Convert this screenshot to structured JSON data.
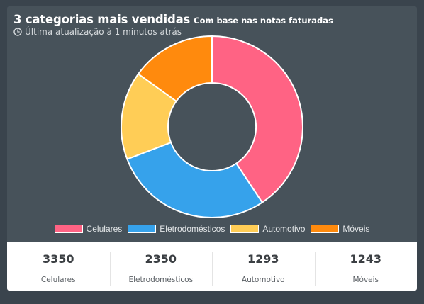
{
  "header": {
    "title": "3 categorias mais vendidas",
    "subtitle": "Com base nas notas faturadas",
    "update_text": "Última atualização à 1 minutos atrás",
    "update_icon": "clock-icon"
  },
  "colors": {
    "Celulares": "#ff6384",
    "Eletrodomésticos": "#36a2eb",
    "Automotivo": "#ffcd56",
    "Móveis": "#ff8a0d"
  },
  "chart_data": {
    "type": "pie",
    "variant": "doughnut",
    "categories": [
      "Celulares",
      "Eletrodomésticos",
      "Automotivo",
      "Móveis"
    ],
    "values": [
      3350,
      2350,
      1293,
      1243
    ],
    "colors": [
      "#ff6384",
      "#36a2eb",
      "#ffcd56",
      "#ff8a0d"
    ],
    "legend_position": "bottom"
  },
  "legend": [
    {
      "label": "Celulares",
      "color": "#ff6384"
    },
    {
      "label": "Eletrodomésticos",
      "color": "#36a2eb"
    },
    {
      "label": "Automotivo",
      "color": "#ffcd56"
    },
    {
      "label": "Móveis",
      "color": "#ff8a0d"
    }
  ],
  "stats": [
    {
      "value": "3350",
      "label": "Celulares"
    },
    {
      "value": "2350",
      "label": "Eletrodomésticos"
    },
    {
      "value": "1293",
      "label": "Automotivo"
    },
    {
      "value": "1243",
      "label": "Móveis"
    }
  ]
}
